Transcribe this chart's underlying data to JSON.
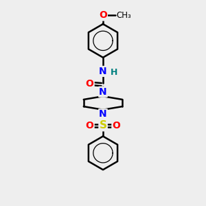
{
  "background_color": "#eeeeee",
  "atom_colors": {
    "O": "#ff0000",
    "N": "#0000ff",
    "S": "#cccc00",
    "NH": "#0000ff",
    "H": "#008080",
    "C": "#000000"
  },
  "bond_width": 1.8,
  "font_size": 10,
  "xlim": [
    0,
    10
  ],
  "ylim": [
    0,
    10
  ]
}
